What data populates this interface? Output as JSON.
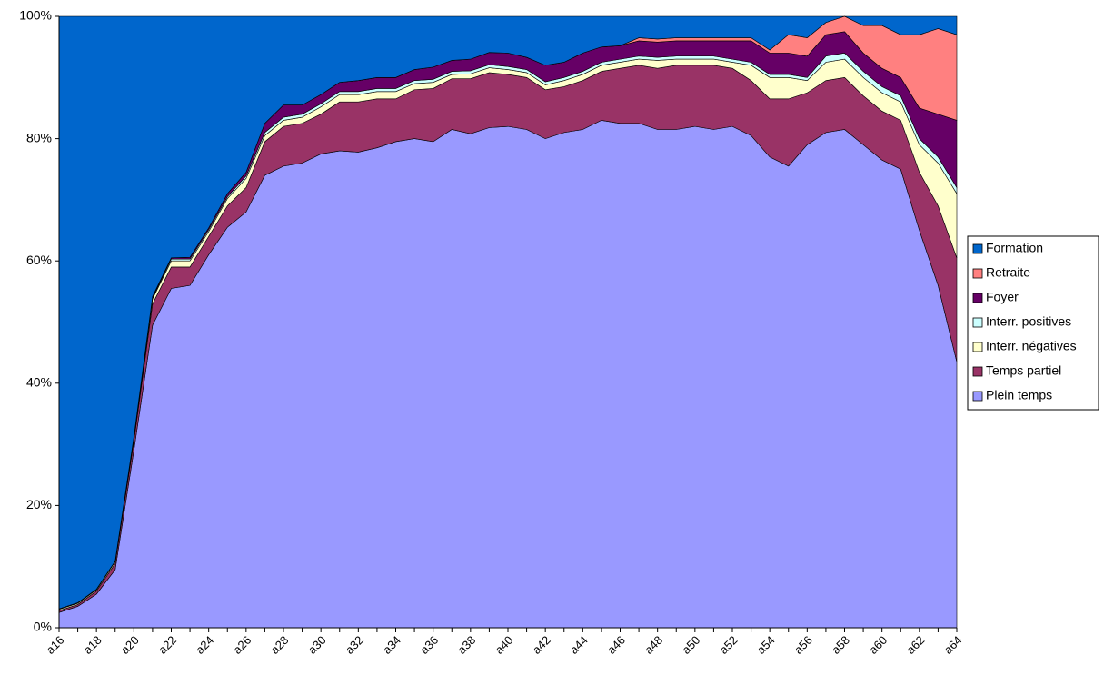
{
  "chart_data": {
    "type": "stacked_area",
    "categories": [
      "a16",
      null,
      "a18",
      null,
      "a20",
      null,
      "a22",
      null,
      "a24",
      null,
      "a26",
      null,
      "a28",
      null,
      "a30",
      null,
      "a32",
      null,
      "a34",
      null,
      "a36",
      null,
      "a38",
      null,
      "a40",
      null,
      "a42",
      null,
      "a44",
      null,
      "a46",
      null,
      "a48",
      null,
      "a50",
      null,
      "a52",
      null,
      "a54",
      null,
      "a56",
      null,
      "a58",
      null,
      "a60",
      null,
      "a62",
      null,
      "a64"
    ],
    "series": [
      {
        "name": "Plein temps",
        "color": "#9999ff",
        "values": [
          2.5,
          3.5,
          5.5,
          9.5,
          29,
          49.5,
          55.5,
          56,
          61,
          65.5,
          68,
          74,
          75.5,
          76,
          77.5,
          78,
          77.8,
          78.5,
          79.5,
          80,
          79.5,
          81.5,
          80.8,
          81.8,
          82,
          81.5,
          80,
          81,
          81.5,
          83,
          82.5,
          82.5,
          81.5,
          81.5,
          82,
          81.5,
          82,
          80.5,
          77,
          75.5,
          79,
          81,
          81.5,
          79,
          76.5,
          75,
          65,
          56,
          43.5
        ]
      },
      {
        "name": "Temps partiel",
        "color": "#993366",
        "values": [
          0.3,
          0.3,
          0.5,
          1,
          1.5,
          3.5,
          3.5,
          3,
          3,
          3.5,
          4,
          5.5,
          6.5,
          6.5,
          6.5,
          8,
          8.2,
          8,
          7,
          8,
          8.7,
          8.3,
          9,
          9,
          8.5,
          8.5,
          8,
          7.5,
          8,
          8,
          9,
          9.5,
          10,
          10.5,
          10,
          10.5,
          9.5,
          9,
          9.5,
          11,
          8.5,
          8.5,
          8.5,
          8,
          8,
          8,
          9.5,
          13,
          17
        ]
      },
      {
        "name": "Interr. négatives",
        "color": "#ffffcc",
        "values": [
          0.2,
          0.2,
          0.2,
          0.3,
          0.5,
          0.8,
          1,
          1,
          0.8,
          1.2,
          1.5,
          1,
          1,
          1,
          1.2,
          1.2,
          1.2,
          1.2,
          1.2,
          1,
          1,
          0.7,
          0.8,
          0.8,
          0.8,
          0.8,
          0.8,
          1,
          1,
          1,
          1,
          1,
          1.3,
          1,
          1,
          1,
          1,
          2.5,
          3.5,
          3.5,
          2,
          3,
          3,
          3,
          3,
          3,
          4.5,
          7,
          10.5
        ]
      },
      {
        "name": "Interr. positives",
        "color": "#ccffff",
        "values": [
          0.1,
          0.1,
          0.1,
          0.1,
          0.2,
          0.2,
          0.3,
          0.3,
          0.3,
          0.3,
          0.4,
          0.5,
          0.5,
          0.5,
          0.5,
          0.5,
          0.5,
          0.5,
          0.5,
          0.5,
          0.5,
          0.5,
          0.5,
          0.5,
          0.5,
          0.5,
          0.5,
          0.5,
          0.5,
          0.5,
          0.5,
          0.5,
          0.5,
          0.5,
          0.5,
          0.5,
          0.5,
          0.5,
          0.5,
          0.5,
          0.5,
          1,
          1,
          1,
          1,
          1,
          1,
          1,
          1
        ]
      },
      {
        "name": "Foyer",
        "color": "#660066",
        "values": [
          0,
          0,
          0,
          0,
          0,
          0.2,
          0.2,
          0.3,
          0.3,
          0.5,
          0.6,
          1.5,
          2,
          1.5,
          1.5,
          1.5,
          1.8,
          1.8,
          1.8,
          1.8,
          2,
          1.8,
          1.9,
          2,
          2.2,
          2,
          2.7,
          2.5,
          3,
          2.5,
          2.2,
          2.5,
          2.5,
          2.5,
          2.5,
          2.5,
          3,
          3.5,
          3.5,
          3.5,
          3.5,
          3.5,
          3.5,
          3,
          3,
          3,
          5,
          7,
          11
        ]
      },
      {
        "name": "Retraite",
        "color": "#ff8080",
        "values": [
          0,
          0,
          0,
          0,
          0,
          0,
          0,
          0,
          0,
          0,
          0,
          0,
          0,
          0,
          0,
          0,
          0,
          0,
          0,
          0,
          0,
          0,
          0,
          0,
          0,
          0,
          0,
          0,
          0,
          0,
          0,
          0.5,
          0.5,
          0.5,
          0.5,
          0.5,
          0.5,
          0.5,
          0.5,
          3,
          3,
          2,
          2.5,
          4.5,
          7,
          7,
          12,
          14,
          14
        ]
      },
      {
        "name": "Formation",
        "color": "#0066cc",
        "values": [
          96.9,
          95.9,
          93.7,
          89.1,
          68.8,
          45.8,
          39.5,
          39.4,
          34.6,
          29,
          25.5,
          17.5,
          14.5,
          14.5,
          12.8,
          10.8,
          10.5,
          10,
          10,
          8.7,
          8.3,
          7.2,
          7,
          5.9,
          6,
          6.7,
          8,
          7.5,
          6,
          5,
          4.8,
          3.5,
          3.7,
          3.5,
          3.5,
          3.5,
          3.5,
          3.5,
          5.5,
          3,
          3.5,
          1,
          0,
          1.5,
          1.5,
          3,
          3,
          2,
          3
        ]
      }
    ],
    "ylim": [
      0,
      100
    ],
    "yticks": [
      {
        "value": 0,
        "label": "0%"
      },
      {
        "value": 20,
        "label": "20%"
      },
      {
        "value": 40,
        "label": "40%"
      },
      {
        "value": 60,
        "label": "60%"
      },
      {
        "value": 80,
        "label": "80%"
      },
      {
        "value": 100,
        "label": "100%"
      }
    ],
    "legend": "right"
  }
}
